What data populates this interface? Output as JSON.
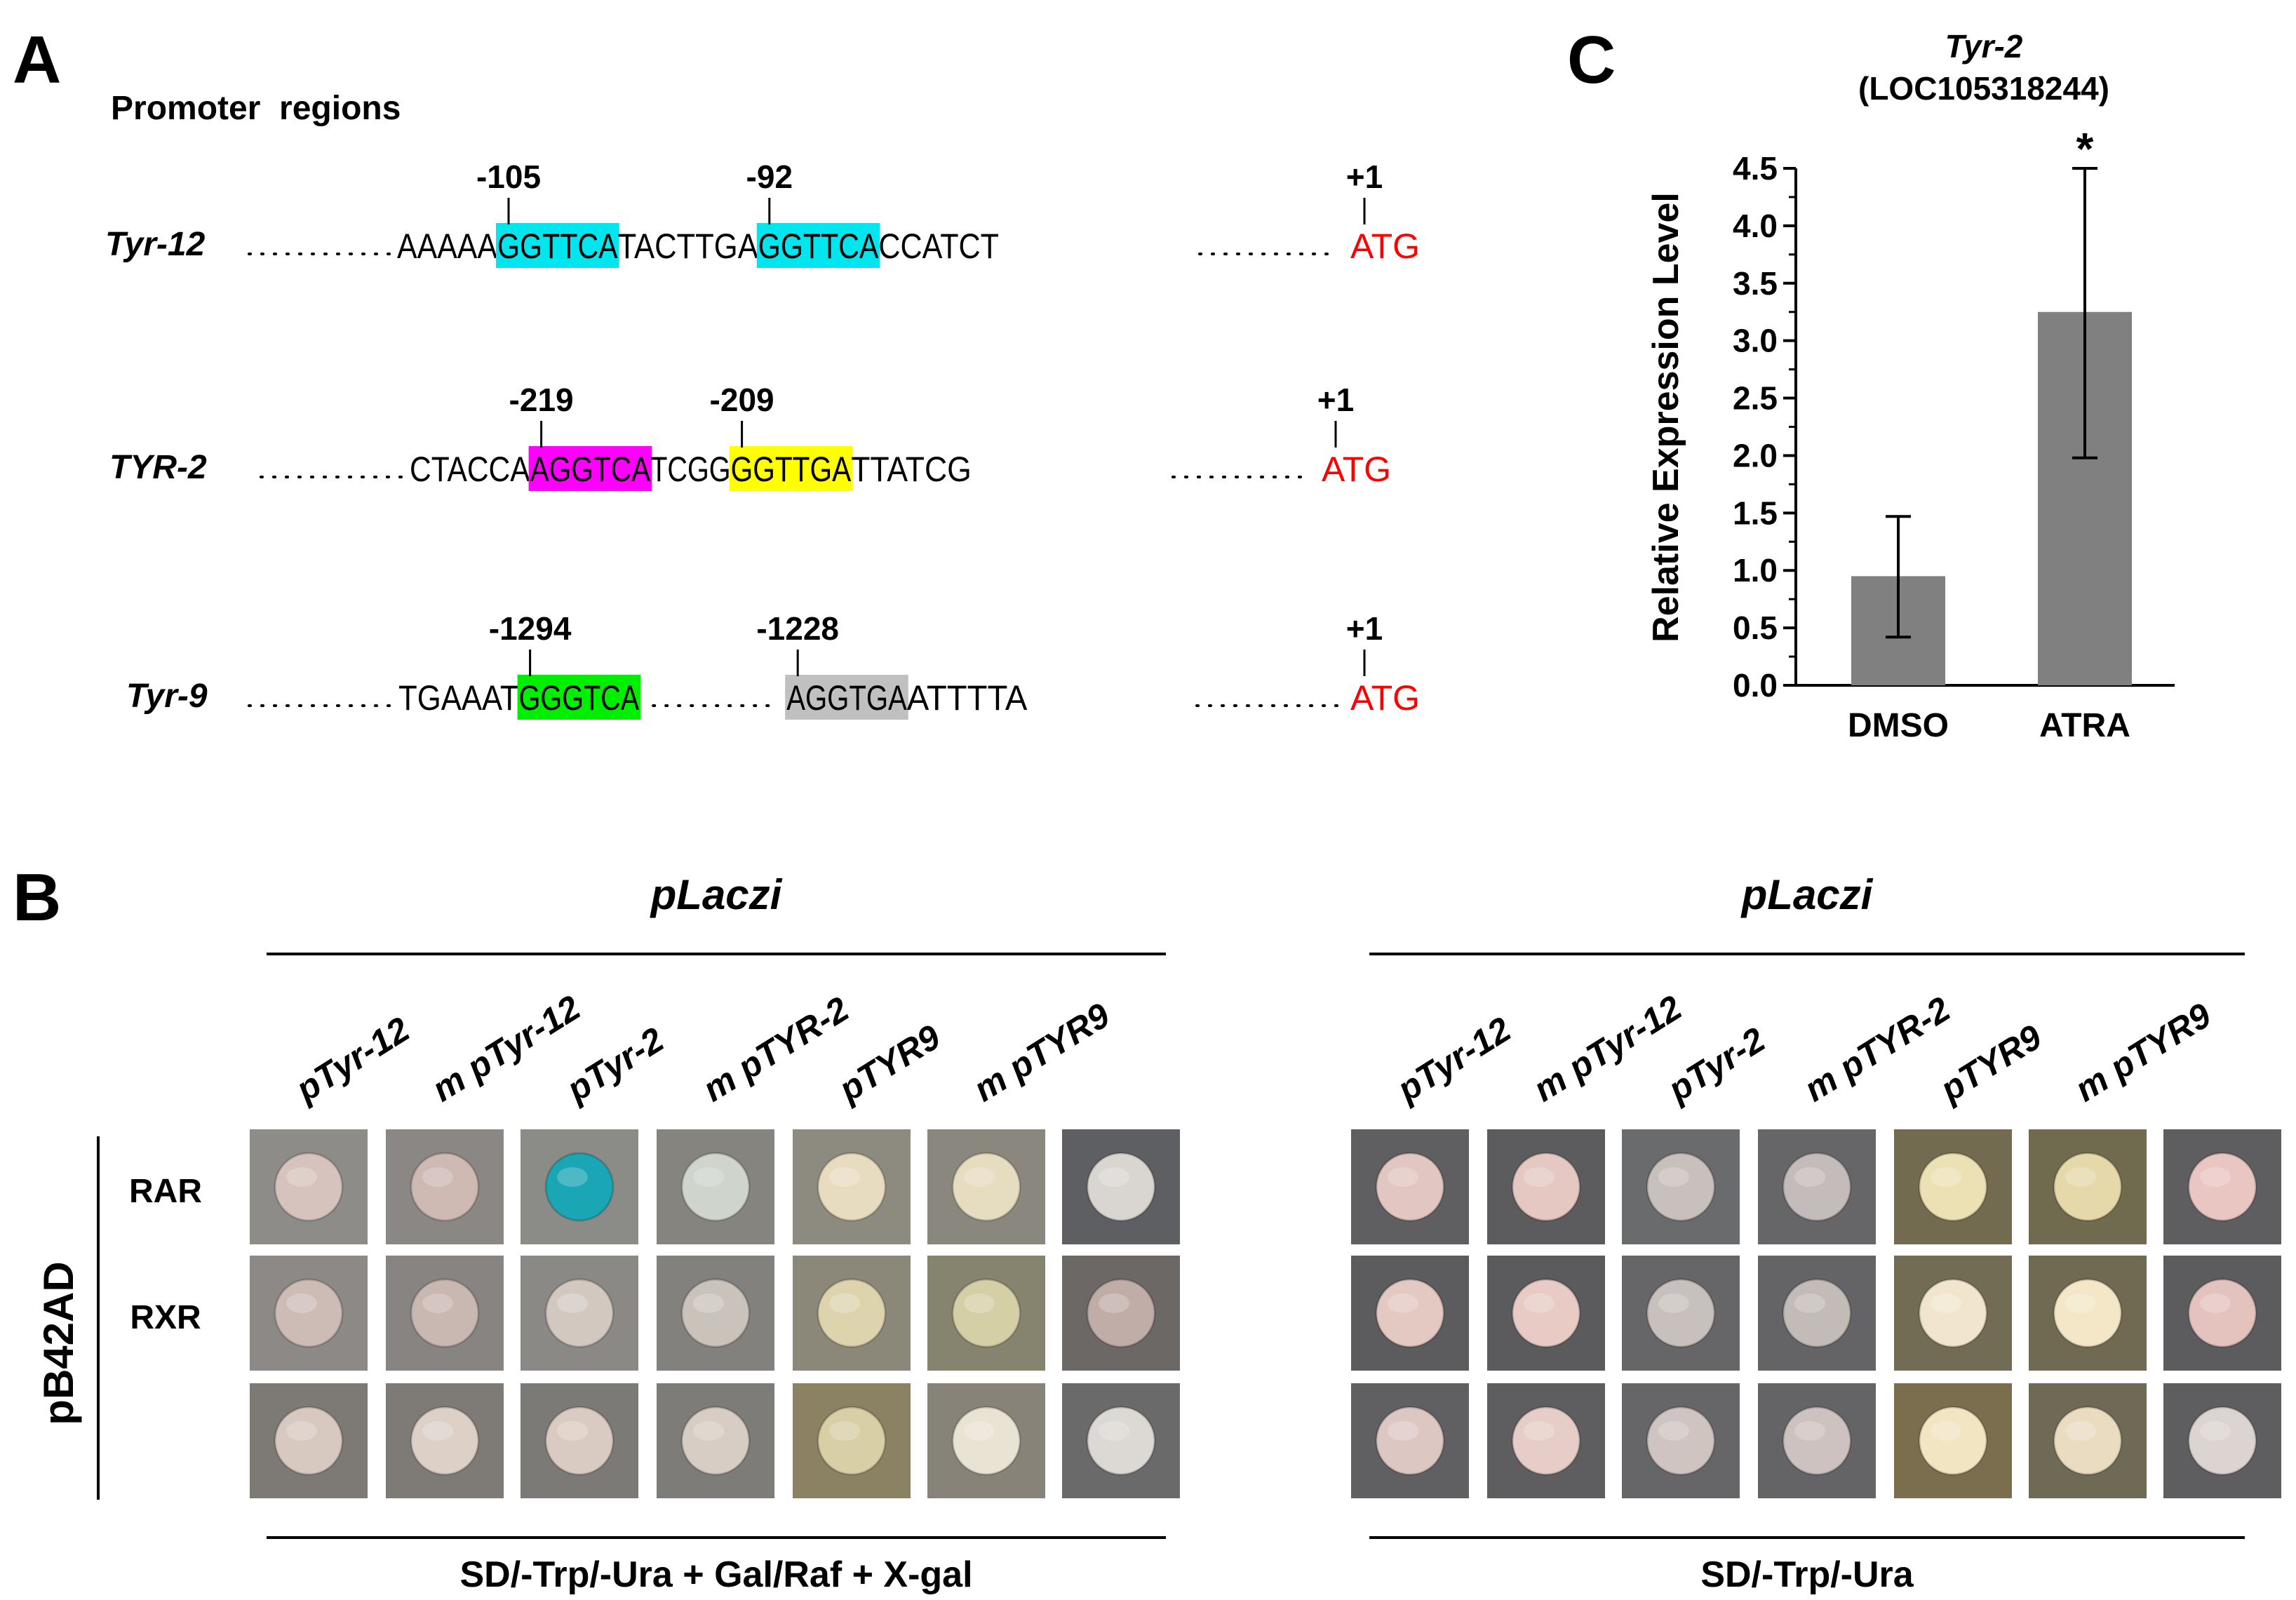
{
  "panel_a": {
    "letter": "A",
    "title": "Promoter  regions",
    "genes": [
      {
        "name": "Tyr-12",
        "seq": [
          {
            "t": "AAAAA"
          },
          {
            "t": "GGTTCA",
            "hl": "#00e5ee",
            "site": "-105"
          },
          {
            "t": "TACTTGA"
          },
          {
            "t": "GGTTCA",
            "hl": "#00e5ee",
            "site": "-92"
          },
          {
            "t": "CCATCT"
          }
        ],
        "tail": "ATG",
        "tss": "+1"
      },
      {
        "name": "TYR-2",
        "seq": [
          {
            "t": "CTACCA"
          },
          {
            "t": "AGGTCA",
            "hl": "#ff00ff",
            "site": "-219"
          },
          {
            "t": "TCGG"
          },
          {
            "t": "GGTTGA",
            "hl": "#ffff00",
            "site": "-209"
          },
          {
            "t": "TTATCG"
          }
        ],
        "tail": "ATG",
        "tss": "+1"
      },
      {
        "name": "Tyr-9",
        "seq": [
          {
            "t": "TGAAAT"
          },
          {
            "t": "GGGTCA",
            "hl": "#00ee00",
            "site": "-1294"
          },
          {
            "gap": true
          },
          {
            "t": "AGGTGA",
            "hl": "#c0c0c0",
            "site": "-1228"
          },
          {
            "t": "ATTTTA"
          }
        ],
        "tail": "ATG",
        "tss": "+1"
      }
    ],
    "atg_color": "#ff0000"
  },
  "panel_b": {
    "letter": "B",
    "vertical_label": "pB42AD",
    "row_labels": [
      "RAR",
      "RXR"
    ],
    "groups": [
      {
        "top_label": "pLaczi",
        "columns": [
          "pTyr-12",
          "m pTyr-12",
          "pTyr-2",
          "m pTYR-2",
          "pTYR9",
          "m pTYR9"
        ],
        "bottom_label": "SD/-Trp/-Ura + Gal/Raf + X-gal",
        "cells": [
          [
            {
              "bg": "#8e8c88",
              "c": "#d6c3bd"
            },
            {
              "bg": "#8a8784",
              "c": "#ceb9b3"
            },
            {
              "bg": "#8b8b88",
              "c": "#1aa6b5"
            },
            {
              "bg": "#85847f",
              "c": "#cfd4cc"
            },
            {
              "bg": "#8d8a80",
              "c": "#e8dcc0"
            },
            {
              "bg": "#8a887e",
              "c": "#e6dcc0"
            },
            {
              "bg": "#5e5f62",
              "c": "#d9d6d2"
            }
          ],
          [
            {
              "bg": "#8c8986",
              "c": "#cdbbb6"
            },
            {
              "bg": "#878482",
              "c": "#c9b7b1"
            },
            {
              "bg": "#8a8985",
              "c": "#d3c8c0"
            },
            {
              "bg": "#83817e",
              "c": "#cac3bc"
            },
            {
              "bg": "#8b8879",
              "c": "#ddd4ae"
            },
            {
              "bg": "#86846f",
              "c": "#d5cfa6"
            },
            {
              "bg": "#6b6866",
              "c": "#c0ada7"
            }
          ],
          [
            {
              "bg": "#7d7a76",
              "c": "#d8c9c0"
            },
            {
              "bg": "#7e7b77",
              "c": "#dcd0c7"
            },
            {
              "bg": "#7c7a76",
              "c": "#dacbc2"
            },
            {
              "bg": "#7e7c78",
              "c": "#d7cdc4"
            },
            {
              "bg": "#8a8263",
              "c": "#d8cfa6"
            },
            {
              "bg": "#878379",
              "c": "#e9e3d3"
            },
            {
              "bg": "#6a6a6b",
              "c": "#dcd8d3"
            }
          ]
        ]
      },
      {
        "top_label": "pLaczi",
        "columns": [
          "pTyr-12",
          "m pTyr-12",
          "pTyr-2",
          "m pTYR-2",
          "pTYR9",
          "m pTYR9"
        ],
        "bottom_label": "SD/-Trp/-Ura",
        "cells": [
          [
            {
              "bg": "#5f5e60",
              "c": "#e2c6c1"
            },
            {
              "bg": "#5c5c5f",
              "c": "#e5c8c2"
            },
            {
              "bg": "#6a6b6d",
              "c": "#c8c0bd"
            },
            {
              "bg": "#666669",
              "c": "#c4bcba"
            },
            {
              "bg": "#736b50",
              "c": "#ece1b4"
            },
            {
              "bg": "#706a4f",
              "c": "#e5d9aa"
            },
            {
              "bg": "#5e5d60",
              "c": "#eac6c3"
            }
          ],
          [
            {
              "bg": "#5c5b5e",
              "c": "#e4c8c2"
            },
            {
              "bg": "#5b5b5e",
              "c": "#e7cbc4"
            },
            {
              "bg": "#666669",
              "c": "#c8c0bd"
            },
            {
              "bg": "#646467",
              "c": "#c3bbb8"
            },
            {
              "bg": "#736c55",
              "c": "#f1e6cd"
            },
            {
              "bg": "#716a52",
              "c": "#f3e7c8"
            },
            {
              "bg": "#5c5b5e",
              "c": "#e4c3bf"
            }
          ],
          [
            {
              "bg": "#606063",
              "c": "#ddc7c3"
            },
            {
              "bg": "#5e5e61",
              "c": "#e6cdc7"
            },
            {
              "bg": "#666669",
              "c": "#cfc4c0"
            },
            {
              "bg": "#646467",
              "c": "#cdc2bf"
            },
            {
              "bg": "#7a6e4e",
              "c": "#f1e5c2"
            },
            {
              "bg": "#6f6a55",
              "c": "#e9dcc0"
            },
            {
              "bg": "#5e5e61",
              "c": "#dcd4d0"
            }
          ]
        ]
      }
    ]
  },
  "panel_c": {
    "letter": "C",
    "gene_italic": "Tyr-2",
    "gene_locus": "(LOC105318244)"
  },
  "chart_data": {
    "type": "bar",
    "categories": [
      "DMSO",
      "ATRA"
    ],
    "values": [
      0.95,
      3.25
    ],
    "errors_low": [
      0.42,
      1.98
    ],
    "errors_high": [
      1.47,
      4.5
    ],
    "annotations": [
      "",
      "*"
    ],
    "ylabel": "Relative Expression Level",
    "ylim": [
      0,
      4.5
    ],
    "yticks": [
      "0.0",
      "0.5",
      "1.0",
      "1.5",
      "2.0",
      "2.5",
      "3.0",
      "3.5",
      "4.0",
      "4.5"
    ],
    "bar_color": "#808080",
    "grid": false
  }
}
